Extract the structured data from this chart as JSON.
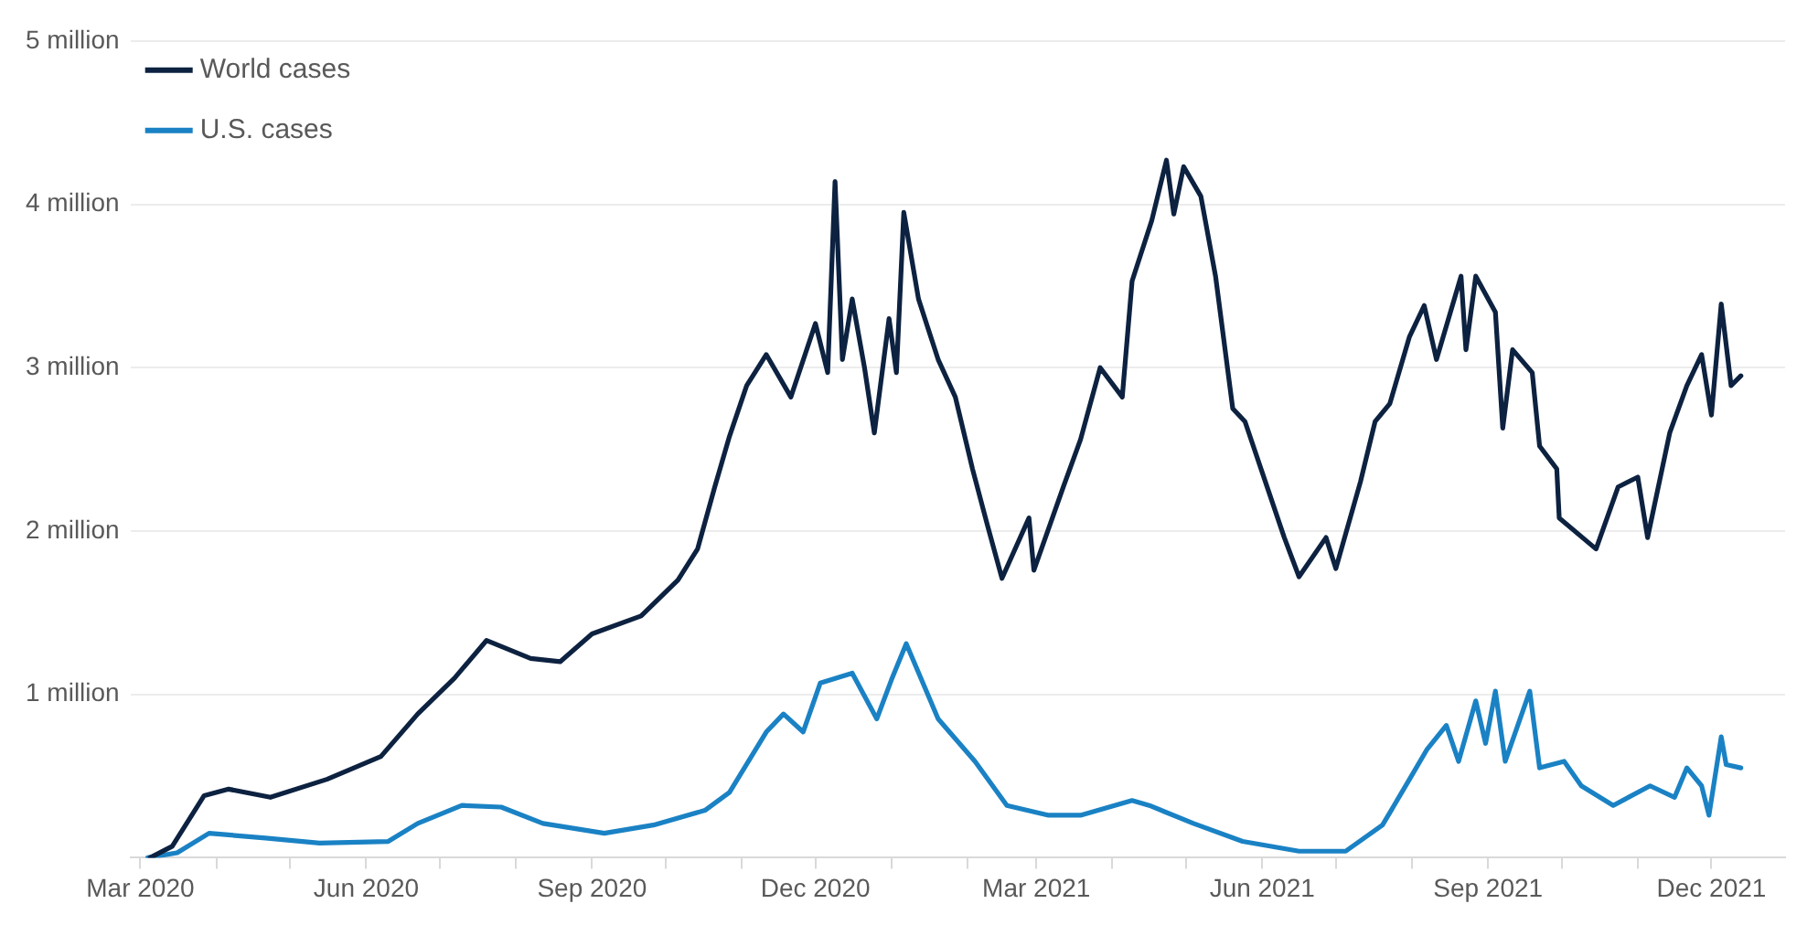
{
  "chart_data": {
    "type": "line",
    "xlim": [
      "2020-02-26",
      "2021-12-31"
    ],
    "xticks": [
      {
        "value": "2020-03",
        "label": "Mar 2020"
      },
      {
        "value": "2020-04",
        "label": null
      },
      {
        "value": "2020-05",
        "label": null
      },
      {
        "value": "2020-06",
        "label": "Jun 2020"
      },
      {
        "value": "2020-07",
        "label": null
      },
      {
        "value": "2020-08",
        "label": null
      },
      {
        "value": "2020-09",
        "label": "Sep 2020"
      },
      {
        "value": "2020-10",
        "label": null
      },
      {
        "value": "2020-11",
        "label": null
      },
      {
        "value": "2020-12",
        "label": "Dec 2020"
      },
      {
        "value": "2021-01",
        "label": null
      },
      {
        "value": "2021-02",
        "label": null
      },
      {
        "value": "2021-03",
        "label": "Mar 2021"
      },
      {
        "value": "2021-04",
        "label": null
      },
      {
        "value": "2021-05",
        "label": null
      },
      {
        "value": "2021-06",
        "label": "Jun 2021"
      },
      {
        "value": "2021-07",
        "label": null
      },
      {
        "value": "2021-08",
        "label": null
      },
      {
        "value": "2021-09",
        "label": "Sep 2021"
      },
      {
        "value": "2021-10",
        "label": null
      },
      {
        "value": "2021-11",
        "label": null
      },
      {
        "value": "2021-12",
        "label": "Dec 2021"
      }
    ],
    "ylim": [
      0,
      5000000
    ],
    "yticks": [
      {
        "value": 0,
        "label": null
      },
      {
        "value": 1000000,
        "label": "1 million"
      },
      {
        "value": 2000000,
        "label": "2 million"
      },
      {
        "value": 3000000,
        "label": "3 million"
      },
      {
        "value": 4000000,
        "label": "4 million"
      },
      {
        "value": 5000000,
        "label": "5 million"
      }
    ],
    "grid": "y",
    "legend": "top left",
    "marker": "none",
    "line_style": "solid",
    "series": [
      {
        "name": "World cases",
        "color": "#0d2240",
        "x": [
          "2020-03-05",
          "2020-03-14",
          "2020-03-27",
          "2020-04-06",
          "2020-04-23",
          "2020-05-16",
          "2020-06-07",
          "2020-06-22",
          "2020-07-07",
          "2020-07-20",
          "2020-08-07",
          "2020-08-19",
          "2020-09-01",
          "2020-09-21",
          "2020-10-06",
          "2020-10-14",
          "2020-10-21",
          "2020-10-27",
          "2020-11-03",
          "2020-11-11",
          "2020-11-21",
          "2020-12-01",
          "2020-12-06",
          "2020-12-09",
          "2020-12-12",
          "2020-12-16",
          "2020-12-21",
          "2020-12-25",
          "2020-12-31",
          "2021-01-03",
          "2021-01-06",
          "2021-01-12",
          "2021-01-20",
          "2021-01-27",
          "2021-02-03",
          "2021-02-09",
          "2021-02-15",
          "2021-02-26",
          "2021-02-28",
          "2021-03-12",
          "2021-03-19",
          "2021-03-27",
          "2021-04-05",
          "2021-04-09",
          "2021-04-17",
          "2021-04-23",
          "2021-04-26",
          "2021-04-30",
          "2021-05-07",
          "2021-05-13",
          "2021-05-20",
          "2021-05-25",
          "2021-06-03",
          "2021-06-10",
          "2021-06-16",
          "2021-06-27",
          "2021-07-01",
          "2021-07-11",
          "2021-07-17",
          "2021-07-23",
          "2021-07-31",
          "2021-08-06",
          "2021-08-11",
          "2021-08-21",
          "2021-08-23",
          "2021-08-27",
          "2021-09-04",
          "2021-09-07",
          "2021-09-11",
          "2021-09-19",
          "2021-09-22",
          "2021-09-29",
          "2021-09-30",
          "2021-10-15",
          "2021-10-24",
          "2021-11-01",
          "2021-11-05",
          "2021-11-14",
          "2021-11-21",
          "2021-11-27",
          "2021-12-01",
          "2021-12-05",
          "2021-12-09",
          "2021-12-13"
        ],
        "values": [
          0,
          70000,
          380000,
          420000,
          370000,
          480000,
          620000,
          880000,
          1100000,
          1330000,
          1220000,
          1200000,
          1370000,
          1480000,
          1700000,
          1890000,
          2270000,
          2580000,
          2890000,
          3080000,
          2820000,
          3270000,
          2970000,
          4140000,
          3050000,
          3420000,
          3000000,
          2600000,
          3300000,
          2970000,
          3950000,
          3420000,
          3050000,
          2820000,
          2380000,
          2040000,
          1710000,
          2080000,
          1760000,
          2270000,
          2560000,
          3000000,
          2820000,
          3530000,
          3900000,
          4270000,
          3940000,
          4230000,
          4050000,
          3560000,
          2750000,
          2670000,
          2270000,
          1960000,
          1720000,
          1960000,
          1770000,
          2300000,
          2670000,
          2780000,
          3190000,
          3380000,
          3050000,
          3560000,
          3110000,
          3560000,
          3340000,
          2630000,
          3110000,
          2970000,
          2520000,
          2380000,
          2080000,
          1890000,
          2270000,
          2330000,
          1960000,
          2600000,
          2890000,
          3080000,
          2710000,
          3390000,
          2890000,
          2950000
        ]
      },
      {
        "name": "U.S. cases",
        "color": "#1a82c4",
        "x": [
          "2020-03-04",
          "2020-03-16",
          "2020-03-29",
          "2020-04-21",
          "2020-05-13",
          "2020-06-10",
          "2020-06-22",
          "2020-07-10",
          "2020-07-26",
          "2020-08-12",
          "2020-09-06",
          "2020-09-26",
          "2020-10-17",
          "2020-10-27",
          "2020-11-11",
          "2020-11-18",
          "2020-11-26",
          "2020-12-03",
          "2020-12-16",
          "2020-12-26",
          "2021-01-01",
          "2021-01-07",
          "2021-01-20",
          "2021-02-04",
          "2021-02-17",
          "2021-03-06",
          "2021-03-19",
          "2021-04-09",
          "2021-04-16",
          "2021-05-04",
          "2021-05-24",
          "2021-06-16",
          "2021-07-05",
          "2021-07-20",
          "2021-07-31",
          "2021-08-07",
          "2021-08-15",
          "2021-08-20",
          "2021-08-27",
          "2021-08-31",
          "2021-09-04",
          "2021-09-08",
          "2021-09-18",
          "2021-09-22",
          "2021-10-02",
          "2021-10-09",
          "2021-10-22",
          "2021-11-06",
          "2021-11-16",
          "2021-11-21",
          "2021-11-27",
          "2021-11-30",
          "2021-12-05",
          "2021-12-07",
          "2021-12-13"
        ],
        "values": [
          0,
          30000,
          150000,
          120000,
          90000,
          100000,
          210000,
          320000,
          310000,
          210000,
          150000,
          200000,
          290000,
          400000,
          770000,
          880000,
          770000,
          1070000,
          1130000,
          850000,
          1090000,
          1310000,
          850000,
          590000,
          320000,
          260000,
          260000,
          350000,
          320000,
          210000,
          100000,
          40000,
          40000,
          200000,
          480000,
          660000,
          810000,
          590000,
          960000,
          700000,
          1020000,
          590000,
          1020000,
          550000,
          590000,
          440000,
          320000,
          440000,
          370000,
          550000,
          440000,
          260000,
          740000,
          570000,
          550000
        ]
      }
    ]
  }
}
